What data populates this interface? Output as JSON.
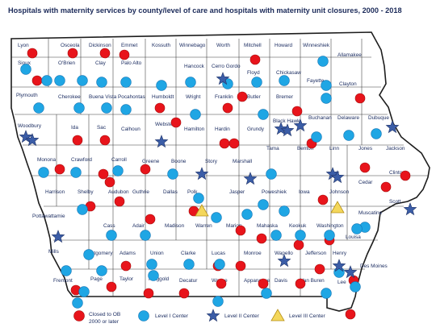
{
  "title": "Hospitals with maternity services by county/level of care and hospitals with maternity unit closures, 2000 - 2018",
  "colors": {
    "closed": "#e8141b",
    "level1": "#1fa6e4",
    "level2": "#3b5da7",
    "level3": "#f4d75b"
  },
  "counties": [
    "Lyon",
    "Osceola",
    "Dickinson",
    "Emmet",
    "Kossuth",
    "Winnebago",
    "Worth",
    "Mitchell",
    "Howard",
    "Winneshiek",
    "Allamakee",
    "Sioux",
    "O'Brien",
    "Clay",
    "Palo Alto",
    "Hancock",
    "Cerro Gordo",
    "Floyd",
    "Chickasaw",
    "Fayette",
    "Clayton",
    "Plymouth",
    "Cherokee",
    "Buena Vista",
    "Pocahontas",
    "Humboldt",
    "Wright",
    "Franklin",
    "Butler",
    "Bremer",
    "Woodbury",
    "Ida",
    "Sac",
    "Calhoun",
    "Webster",
    "Hamilton",
    "Hardin",
    "Grundy",
    "Black Hawk",
    "Buchanan",
    "Delaware",
    "Dubuque",
    "Monona",
    "Crawford",
    "Carroll",
    "Greene",
    "Boone",
    "Story",
    "Marshall",
    "Tama",
    "Benton",
    "Linn",
    "Jones",
    "Jackson",
    "Clinton",
    "Cedar",
    "Harrison",
    "Shelby",
    "Audubon",
    "Guthrie",
    "Dallas",
    "Polk",
    "Jasper",
    "Poweshiek",
    "Iowa",
    "Johnson",
    "Scott",
    "Muscatine",
    "Pottawattamie",
    "Cass",
    "Adair",
    "Madison",
    "Warren",
    "Marion",
    "Mahaska",
    "Keokuk",
    "Washington",
    "Louisa",
    "Mills",
    "Montgomery",
    "Adams",
    "Union",
    "Clarke",
    "Lucas",
    "Monroe",
    "Wapello",
    "Jefferson",
    "Henry",
    "Des Moines",
    "Fremont",
    "Page",
    "Taylor",
    "Ringgold",
    "Decatur",
    "Wayne",
    "Appanoose",
    "Davis",
    "Van Buren",
    "Lee"
  ],
  "legend": [
    {
      "symbol": "closed",
      "label": "Closed to OB 2000 or later",
      "line1": "Closed to OB",
      "line2": "2000 or later"
    },
    {
      "symbol": "level1",
      "label": "Level I Center"
    },
    {
      "symbol": "level2",
      "label": "Level II Center"
    },
    {
      "symbol": "level3",
      "label": "Level III Center"
    }
  ],
  "hospital_counts": {
    "closed": 46,
    "level1": 55,
    "level2": 17,
    "level3": 2
  }
}
